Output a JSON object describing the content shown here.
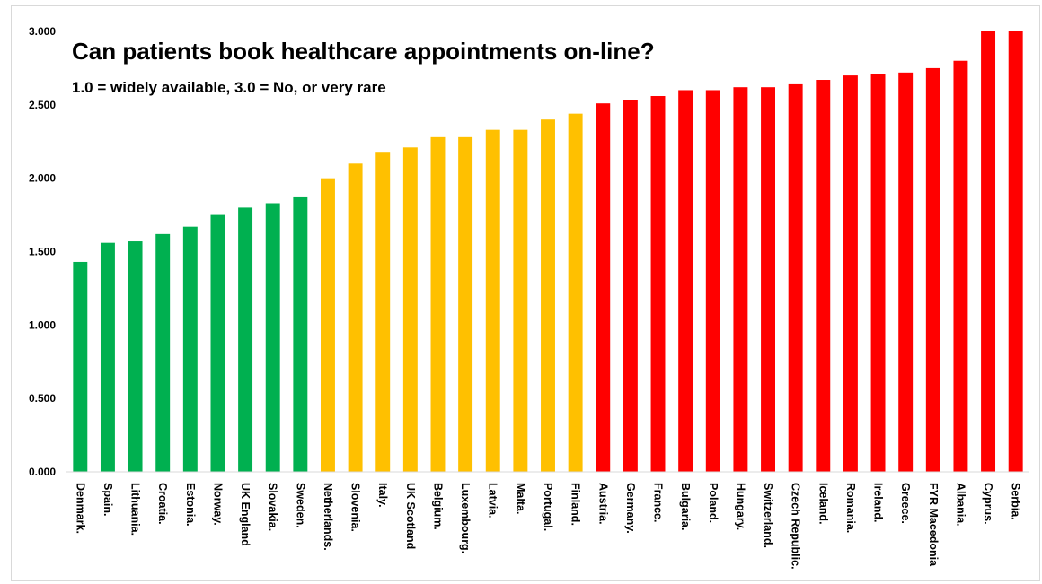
{
  "chart_data": {
    "type": "bar",
    "title": "Can patients book healthcare appointments on-line?",
    "subtitle": "1.0 = widely available, 3.0 = No, or very rare",
    "xlabel": "",
    "ylabel": "",
    "ylim": [
      0,
      3
    ],
    "yticks": [
      "0.000",
      "0.500",
      "1.000",
      "1.500",
      "2.000",
      "2.500",
      "3.000"
    ],
    "grid": false,
    "legend": "none",
    "colors": {
      "green": "#00b050",
      "amber": "#ffc000",
      "red": "#ff0000"
    },
    "categories": [
      "Denmark.",
      "Spain.",
      "Lithuania.",
      "Croatia.",
      "Estonia.",
      "Norway.",
      "UK England",
      "Slovakia.",
      "Sweden.",
      "Netherlands.",
      "Slovenia.",
      "Italy.",
      "UK Scotland",
      "Belgium.",
      "Luxembourg.",
      "Latvia.",
      "Malta.",
      "Portugal.",
      "Finland.",
      "Austria.",
      "Germany.",
      "France.",
      "Bulgaria.",
      "Poland.",
      "Hungary.",
      "Switzerland.",
      "Czech Republic.",
      "Iceland.",
      "Romania.",
      "Ireland.",
      "Greece.",
      "FYR Macedonia",
      "Albania.",
      "Cyprus.",
      "Serbia."
    ],
    "values": [
      1.43,
      1.56,
      1.57,
      1.62,
      1.67,
      1.75,
      1.8,
      1.83,
      1.87,
      2.0,
      2.1,
      2.18,
      2.21,
      2.28,
      2.28,
      2.33,
      2.33,
      2.4,
      2.44,
      2.51,
      2.53,
      2.56,
      2.6,
      2.6,
      2.62,
      2.62,
      2.64,
      2.67,
      2.7,
      2.71,
      2.72,
      2.75,
      2.8,
      3.0,
      3.0
    ],
    "bar_colors": [
      "green",
      "green",
      "green",
      "green",
      "green",
      "green",
      "green",
      "green",
      "green",
      "amber",
      "amber",
      "amber",
      "amber",
      "amber",
      "amber",
      "amber",
      "amber",
      "amber",
      "amber",
      "red",
      "red",
      "red",
      "red",
      "red",
      "red",
      "red",
      "red",
      "red",
      "red",
      "red",
      "red",
      "red",
      "red",
      "red",
      "red"
    ]
  }
}
